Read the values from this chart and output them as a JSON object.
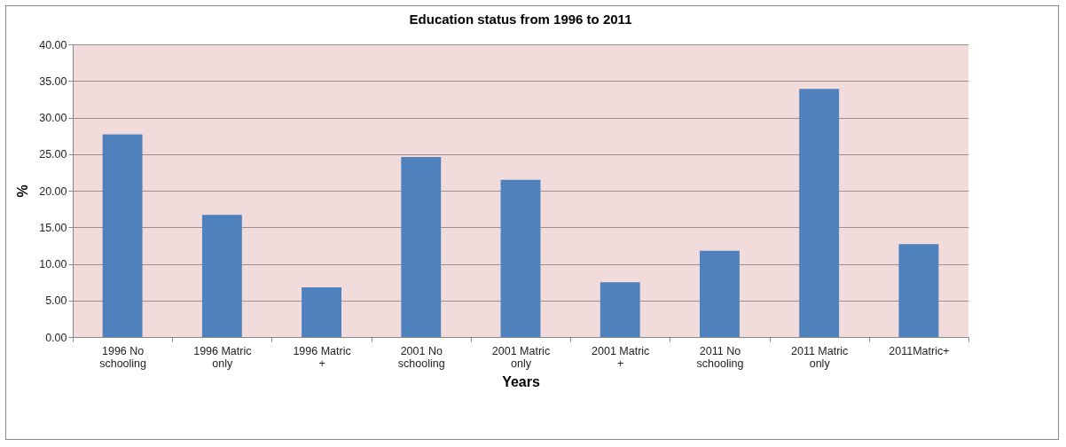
{
  "chart_data": {
    "type": "bar",
    "title": "Education status from 1996 to 2011",
    "xlabel": "Years",
    "ylabel": "%",
    "categories": [
      "1996 No schooling",
      "1996 Matric only",
      "1996 Matric +",
      "2001 No schooling",
      "2001 Matric only",
      "2001 Matric +",
      "2011 No schooling",
      "2011 Matric only",
      "2011Matric+"
    ],
    "values": [
      27.7,
      16.7,
      6.8,
      24.6,
      21.5,
      7.5,
      11.8,
      33.9,
      12.7
    ],
    "color": "#4f81bd",
    "ylim": [
      0,
      40
    ],
    "yticks": [
      {
        "value": 0,
        "label": "0.00"
      },
      {
        "value": 5,
        "label": "5.00"
      },
      {
        "value": 10,
        "label": "10.00"
      },
      {
        "value": 15,
        "label": "15.00"
      },
      {
        "value": 20,
        "label": "20.00"
      },
      {
        "value": 25,
        "label": "25.00"
      },
      {
        "value": 30,
        "label": "30.00"
      },
      {
        "value": 35,
        "label": "35.00"
      },
      {
        "value": 40,
        "label": "40.00"
      }
    ],
    "grid": "y"
  }
}
